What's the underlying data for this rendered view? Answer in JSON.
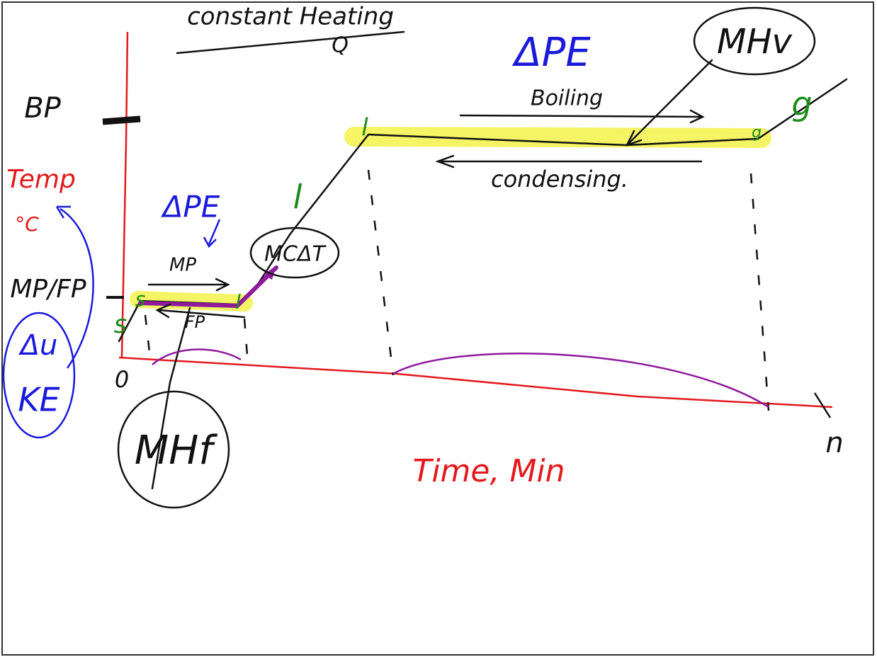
{
  "header": {
    "title": "constant Heating",
    "subtitle": "Q"
  },
  "labels": {
    "delta_pe_top": "ΔPE",
    "mhv": "MHv",
    "boiling": "Boiling",
    "condensing": "condensing.",
    "g_top": "g",
    "g_small": "g",
    "l_top": "l",
    "bp": "BP",
    "temp": "Temp",
    "deg_c": "°C",
    "delta_pe_left": "ΔPE",
    "mp": "MP",
    "mp_fp": "MP/FP",
    "fp": "FP",
    "l_mid": "l",
    "mcdt": "MCΔT",
    "s_upper": "s",
    "s_lower": "s",
    "l_low": "l",
    "zero": "0",
    "note_top": "Δu",
    "note_bottom": "KE",
    "mhf": "MHf",
    "x_label": "Time, Min",
    "n": "n"
  }
}
